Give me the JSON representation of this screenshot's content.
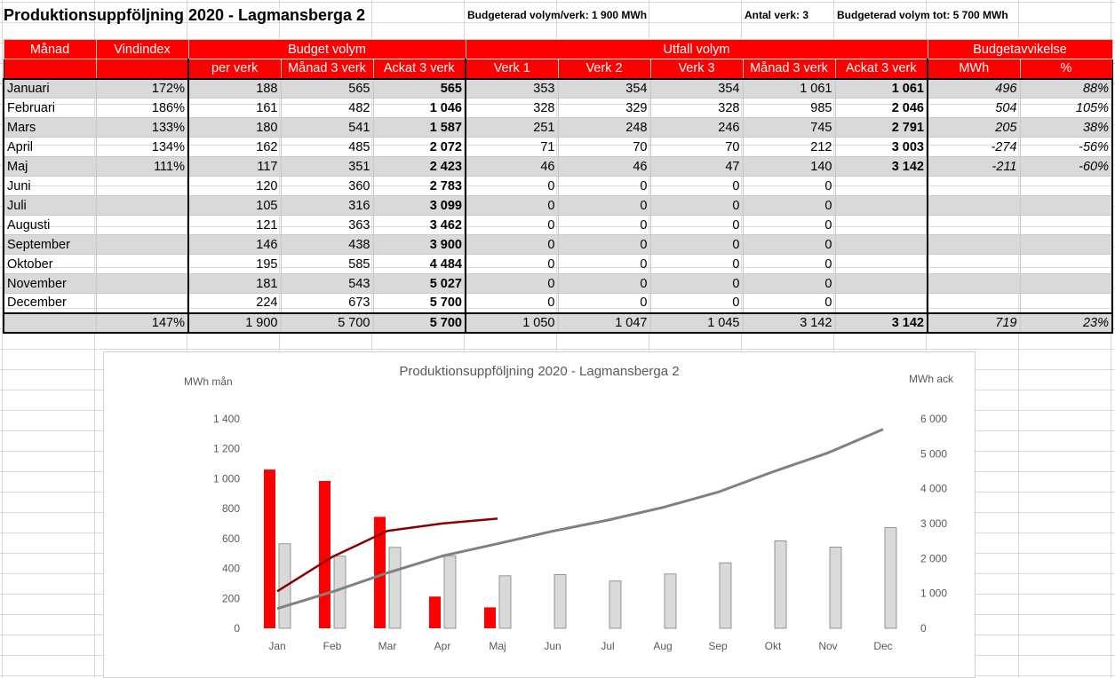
{
  "sheet": {
    "title": "Produktionsuppföljning 2020 - Lagmansberga 2",
    "info_budget": "Budgeterad volym/verk: 1 900 MWh",
    "info_antal": "Antal verk: 3",
    "info_total": "Budgeterad volym tot: 5 700 MWh"
  },
  "table": {
    "group_headers": {
      "manad": "Månad",
      "vindindex": "Vindindex",
      "budget": "Budget volym",
      "utfall": "Utfall volym",
      "avvikelse": "Budgetavvikelse"
    },
    "sub_headers": [
      "",
      "",
      "per verk",
      "Månad 3 verk",
      "Ackat 3 verk",
      "Verk 1",
      "Verk 2",
      "Verk 3",
      "Månad 3 verk",
      "Ackat 3 verk",
      "MWh",
      "%"
    ],
    "rows": [
      [
        "Januari",
        "172%",
        "188",
        "565",
        "565",
        "353",
        "354",
        "354",
        "1 061",
        "1 061",
        "496",
        "88%"
      ],
      [
        "Februari",
        "186%",
        "161",
        "482",
        "1 046",
        "328",
        "329",
        "328",
        "985",
        "2 046",
        "504",
        "105%"
      ],
      [
        "Mars",
        "133%",
        "180",
        "541",
        "1 587",
        "251",
        "248",
        "246",
        "745",
        "2 791",
        "205",
        "38%"
      ],
      [
        "April",
        "134%",
        "162",
        "485",
        "2 072",
        "71",
        "70",
        "70",
        "212",
        "3 003",
        "-274",
        "-56%"
      ],
      [
        "Maj",
        "111%",
        "117",
        "351",
        "2 423",
        "46",
        "46",
        "47",
        "140",
        "3 142",
        "-211",
        "-60%"
      ],
      [
        "Juni",
        "",
        "120",
        "360",
        "2 783",
        "0",
        "0",
        "0",
        "0",
        "",
        "",
        ""
      ],
      [
        "Juli",
        "",
        "105",
        "316",
        "3 099",
        "0",
        "0",
        "0",
        "0",
        "",
        "",
        ""
      ],
      [
        "Augusti",
        "",
        "121",
        "363",
        "3 462",
        "0",
        "0",
        "0",
        "0",
        "",
        "",
        ""
      ],
      [
        "September",
        "",
        "146",
        "438",
        "3 900",
        "0",
        "0",
        "0",
        "0",
        "",
        "",
        ""
      ],
      [
        "Oktober",
        "",
        "195",
        "585",
        "4 484",
        "0",
        "0",
        "0",
        "0",
        "",
        "",
        ""
      ],
      [
        "November",
        "",
        "181",
        "543",
        "5 027",
        "0",
        "0",
        "0",
        "0",
        "",
        "",
        ""
      ],
      [
        "December",
        "",
        "224",
        "673",
        "5 700",
        "0",
        "0",
        "0",
        "0",
        "",
        "",
        ""
      ]
    ],
    "total": [
      "",
      "147%",
      "1 900",
      "5 700",
      "5 700",
      "1 050",
      "1 047",
      "1 045",
      "3 142",
      "3 142",
      "719",
      "23%"
    ]
  },
  "chart_data": {
    "type": "bar",
    "title": "Produktionsuppföljning 2020 - Lagmansberga 2",
    "ylabel_left": "MWh mån",
    "ylabel_right": "MWh ack",
    "categories": [
      "Jan",
      "Feb",
      "Mar",
      "Apr",
      "Maj",
      "Jun",
      "Jul",
      "Aug",
      "Sep",
      "Okt",
      "Nov",
      "Dec"
    ],
    "ylim_left": [
      0,
      1400
    ],
    "yticks_left": [
      0,
      200,
      400,
      600,
      800,
      1000,
      1200,
      1400
    ],
    "ytick_labels_left": [
      "0",
      "200",
      "400",
      "600",
      "800",
      "1 000",
      "1 200",
      "1 400"
    ],
    "ylim_right": [
      0,
      6000
    ],
    "yticks_right": [
      0,
      1000,
      2000,
      3000,
      4000,
      5000,
      6000
    ],
    "ytick_labels_right": [
      "0",
      "1 000",
      "2 000",
      "3 000",
      "4 000",
      "5 000",
      "6 000"
    ],
    "series": [
      {
        "values": [
          1061,
          985,
          745,
          212,
          140,
          null,
          null,
          null,
          null,
          null,
          null,
          null
        ],
        "kind": "bar",
        "axis": "left",
        "color": "#ff0000"
      },
      {
        "values": [
          565,
          482,
          541,
          485,
          351,
          360,
          316,
          363,
          438,
          585,
          543,
          673
        ],
        "kind": "bar",
        "axis": "left",
        "color": "#d9d9d9"
      },
      {
        "values": [
          1061,
          2046,
          2791,
          3003,
          3142,
          null,
          null,
          null,
          null,
          null,
          null,
          null
        ],
        "kind": "line",
        "axis": "right",
        "color": "#8b0000"
      },
      {
        "values": [
          565,
          1046,
          1587,
          2072,
          2423,
          2783,
          3099,
          3462,
          3900,
          4484,
          5027,
          5700
        ],
        "kind": "line",
        "axis": "right",
        "color": "#808080"
      }
    ],
    "grid": false,
    "legend": "none"
  }
}
